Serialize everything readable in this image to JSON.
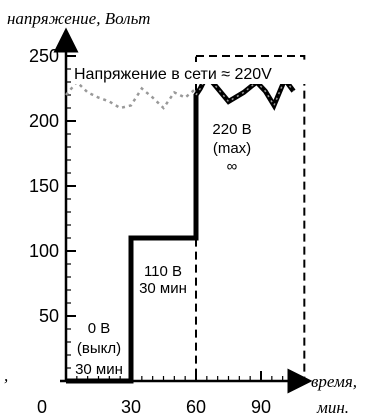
{
  "chart_data": {
    "type": "line",
    "ylabel": "напряжение, Вольт",
    "xlabel_line1": "время,",
    "xlabel_line2": "мин.",
    "xlim": [
      0,
      110
    ],
    "ylim": [
      0,
      260
    ],
    "x_ticks": [
      0,
      30,
      60,
      90
    ],
    "y_ticks": [
      50,
      100,
      150,
      200,
      250
    ],
    "y_minor_step": 10,
    "grid": false,
    "series": [
      {
        "name": "Напряжение в сети ≈ 220V",
        "style": "dotted",
        "color": "#999999",
        "x": [
          0,
          5,
          10,
          15,
          20,
          25,
          30,
          35,
          40,
          45,
          50,
          55,
          60
        ],
        "y": [
          220,
          230,
          222,
          218,
          215,
          210,
          212,
          225,
          218,
          210,
          222,
          218,
          225
        ]
      },
      {
        "name": "",
        "style": "solid",
        "color": "#000000",
        "x": [
          0,
          30,
          30,
          60,
          60,
          62,
          65,
          70,
          75,
          82,
          88,
          92,
          96,
          101,
          105
        ],
        "y": [
          0,
          0,
          110,
          110,
          220,
          225,
          235,
          225,
          215,
          222,
          230,
          223,
          212,
          232,
          223
        ]
      }
    ],
    "annotations": {
      "legend_label": "Напряжение в сети ≈ 220V",
      "seg1_line1": "0 В",
      "seg1_line2": "(выкл)",
      "seg1_line3": "30 мин",
      "seg2_line1": "110 В",
      "seg2_line2": "30 мин",
      "seg3_line1": "220 В",
      "seg3_line2": "(max)",
      "seg3_line3": "∞",
      "cut_left_char": ","
    },
    "max_box": {
      "x": [
        60,
        110
      ],
      "y": [
        0,
        250
      ]
    }
  }
}
